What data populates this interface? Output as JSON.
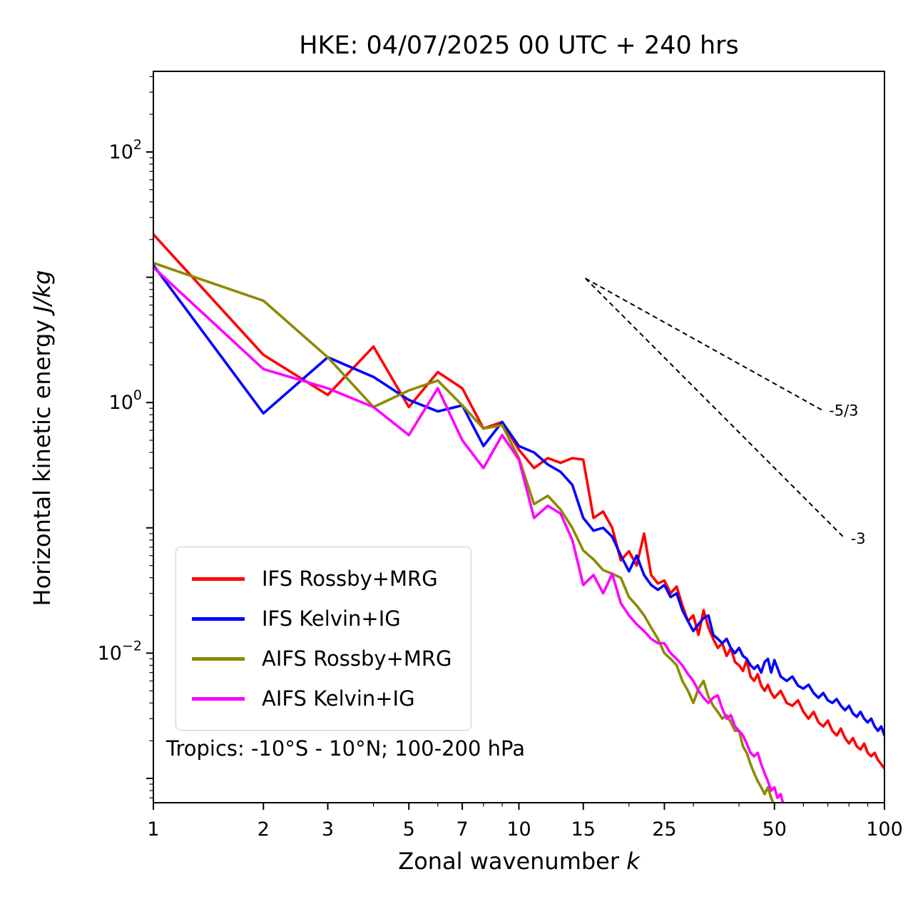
{
  "figure": {
    "title": "HKE: 04/07/2025 00 UTC + 240 hrs",
    "xlabel_plain": "Zonal wavenumber ",
    "xlabel_math": "k",
    "ylabel_plain": "Horizontal kinetic energy ",
    "ylabel_math": "J/kg",
    "annotation": "Tropics: -10°S - 10°N; 100-200 hPa"
  },
  "chart_data": {
    "type": "line",
    "title": "HKE: 04/07/2025 00 UTC + 240 hrs",
    "xlabel": "Zonal wavenumber k",
    "ylabel": "Horizontal kinetic energy J/kg",
    "xscale": "log",
    "yscale": "log",
    "xlim": [
      1,
      100
    ],
    "ylim": [
      0.00064,
      440
    ],
    "grid": false,
    "legend_position": "lower left",
    "x_major_ticks": [
      1,
      2,
      3,
      5,
      7,
      10,
      15,
      25,
      50,
      100
    ],
    "x_major_tick_labels": [
      "1",
      "2",
      "3",
      "5",
      "7",
      "10",
      "15",
      "25",
      "50",
      "100"
    ],
    "x_minor_ticks": [
      4,
      6,
      8,
      9,
      20,
      30,
      40,
      60,
      70,
      80,
      90
    ],
    "y_decade_exponents": [
      2,
      1,
      0,
      -1,
      -2,
      -3
    ],
    "y_labeled_exponents": [
      2,
      0,
      -2
    ],
    "series": [
      {
        "name": "IFS Rossby+MRG",
        "color": "#ff0000",
        "x": [
          1,
          2,
          3,
          4,
          5,
          6,
          7,
          8,
          9,
          10,
          11,
          12,
          13,
          14,
          15,
          16,
          17,
          18,
          19,
          20,
          21,
          22,
          23,
          24,
          25,
          26,
          27,
          28,
          29,
          30,
          31,
          32,
          33,
          34,
          35,
          36,
          37,
          38,
          39,
          40,
          41,
          42,
          43,
          44,
          45,
          46,
          47,
          48,
          49,
          50,
          52,
          54,
          56,
          58,
          60,
          62,
          64,
          66,
          68,
          70,
          72,
          74,
          76,
          78,
          80,
          82,
          84,
          86,
          88,
          90,
          92,
          94,
          96,
          98,
          100
        ],
        "y": [
          22,
          2.4,
          1.15,
          2.8,
          0.92,
          1.75,
          1.3,
          0.62,
          0.7,
          0.42,
          0.3,
          0.36,
          0.33,
          0.36,
          0.35,
          0.12,
          0.135,
          0.1,
          0.055,
          0.065,
          0.05,
          0.09,
          0.042,
          0.036,
          0.038,
          0.03,
          0.034,
          0.024,
          0.018,
          0.02,
          0.014,
          0.022,
          0.016,
          0.013,
          0.011,
          0.012,
          0.0095,
          0.011,
          0.0085,
          0.008,
          0.0072,
          0.0088,
          0.0065,
          0.006,
          0.0068,
          0.0055,
          0.005,
          0.0056,
          0.0048,
          0.0044,
          0.005,
          0.004,
          0.0038,
          0.0042,
          0.0034,
          0.003,
          0.0034,
          0.0028,
          0.0026,
          0.0029,
          0.0024,
          0.0022,
          0.0025,
          0.0021,
          0.0019,
          0.0021,
          0.0018,
          0.0017,
          0.0019,
          0.0016,
          0.0015,
          0.0016,
          0.0014,
          0.0013,
          0.0012
        ]
      },
      {
        "name": "IFS Kelvin+IG",
        "color": "#0000ff",
        "x": [
          1,
          2,
          3,
          4,
          5,
          6,
          7,
          8,
          9,
          10,
          11,
          12,
          13,
          14,
          15,
          16,
          17,
          18,
          19,
          20,
          21,
          22,
          23,
          24,
          25,
          26,
          27,
          28,
          29,
          30,
          31,
          32,
          33,
          34,
          35,
          36,
          37,
          38,
          39,
          40,
          41,
          42,
          43,
          44,
          45,
          46,
          47,
          48,
          49,
          50,
          52,
          54,
          56,
          58,
          60,
          62,
          64,
          66,
          68,
          70,
          72,
          74,
          76,
          78,
          80,
          82,
          84,
          86,
          88,
          90,
          92,
          94,
          96,
          98,
          100
        ],
        "y": [
          12.5,
          0.82,
          2.3,
          1.6,
          1.05,
          0.85,
          0.95,
          0.45,
          0.7,
          0.45,
          0.4,
          0.32,
          0.28,
          0.22,
          0.12,
          0.095,
          0.1,
          0.085,
          0.06,
          0.045,
          0.06,
          0.042,
          0.035,
          0.032,
          0.035,
          0.028,
          0.03,
          0.022,
          0.018,
          0.015,
          0.017,
          0.019,
          0.02,
          0.014,
          0.013,
          0.012,
          0.013,
          0.011,
          0.01,
          0.011,
          0.0095,
          0.009,
          0.008,
          0.0075,
          0.008,
          0.007,
          0.0085,
          0.009,
          0.007,
          0.0088,
          0.0065,
          0.006,
          0.0065,
          0.0055,
          0.0052,
          0.0056,
          0.0048,
          0.0044,
          0.0048,
          0.0042,
          0.004,
          0.0043,
          0.0038,
          0.0035,
          0.0038,
          0.0033,
          0.0031,
          0.0034,
          0.003,
          0.0028,
          0.003,
          0.0026,
          0.0024,
          0.0026,
          0.0022
        ]
      },
      {
        "name": "AIFS Rossby+MRG",
        "color": "#8b8b00",
        "x": [
          1,
          2,
          3,
          4,
          5,
          6,
          7,
          8,
          9,
          10,
          11,
          12,
          13,
          14,
          15,
          16,
          17,
          18,
          19,
          20,
          21,
          22,
          23,
          24,
          25,
          26,
          27,
          28,
          29,
          30,
          31,
          32,
          33,
          34,
          35,
          36,
          37,
          38,
          39,
          40,
          41,
          42,
          43,
          44,
          45,
          46,
          47,
          48,
          49,
          50,
          51,
          52
        ],
        "y": [
          13,
          6.5,
          2.3,
          0.92,
          1.25,
          1.5,
          0.95,
          0.62,
          0.66,
          0.36,
          0.155,
          0.18,
          0.14,
          0.1,
          0.066,
          0.056,
          0.046,
          0.043,
          0.04,
          0.028,
          0.024,
          0.02,
          0.016,
          0.013,
          0.01,
          0.009,
          0.008,
          0.006,
          0.005,
          0.004,
          0.0052,
          0.006,
          0.0045,
          0.0038,
          0.0034,
          0.003,
          0.0032,
          0.0028,
          0.0024,
          0.0024,
          0.0018,
          0.0016,
          0.0013,
          0.0011,
          0.00095,
          0.00085,
          0.00075,
          0.00085,
          0.0007,
          0.0006,
          0.0005,
          0.0004
        ]
      },
      {
        "name": "AIFS Kelvin+IG",
        "color": "#ff00ff",
        "x": [
          1,
          2,
          3,
          4,
          5,
          6,
          7,
          8,
          9,
          10,
          11,
          12,
          13,
          14,
          15,
          16,
          17,
          18,
          19,
          20,
          21,
          22,
          23,
          24,
          25,
          26,
          27,
          28,
          29,
          30,
          31,
          32,
          33,
          34,
          35,
          36,
          37,
          38,
          39,
          40,
          41,
          42,
          43,
          44,
          45,
          46,
          47,
          48,
          49,
          50,
          51,
          52,
          53,
          54,
          55,
          56,
          57
        ],
        "y": [
          12,
          1.85,
          1.3,
          0.92,
          0.55,
          1.3,
          0.5,
          0.3,
          0.55,
          0.35,
          0.12,
          0.15,
          0.13,
          0.08,
          0.035,
          0.042,
          0.03,
          0.043,
          0.025,
          0.02,
          0.017,
          0.015,
          0.013,
          0.012,
          0.012,
          0.01,
          0.009,
          0.008,
          0.0068,
          0.006,
          0.005,
          0.0044,
          0.004,
          0.0044,
          0.0046,
          0.0036,
          0.003,
          0.0032,
          0.0026,
          0.0024,
          0.0022,
          0.0019,
          0.0016,
          0.0015,
          0.0016,
          0.0013,
          0.0011,
          0.00095,
          0.0008,
          0.00085,
          0.0007,
          0.00075,
          0.0006,
          0.00055,
          0.0006,
          0.00048,
          0.0004
        ]
      }
    ],
    "ref_lines": [
      {
        "label": "-5/3",
        "x": [
          15.2,
          68
        ],
        "y": [
          9.8,
          0.86
        ]
      },
      {
        "label": "-3",
        "x": [
          15.2,
          78
        ],
        "y": [
          9.8,
          0.082
        ]
      }
    ],
    "annotation": "Tropics: -10°S - 10°N; 100-200 hPa"
  }
}
